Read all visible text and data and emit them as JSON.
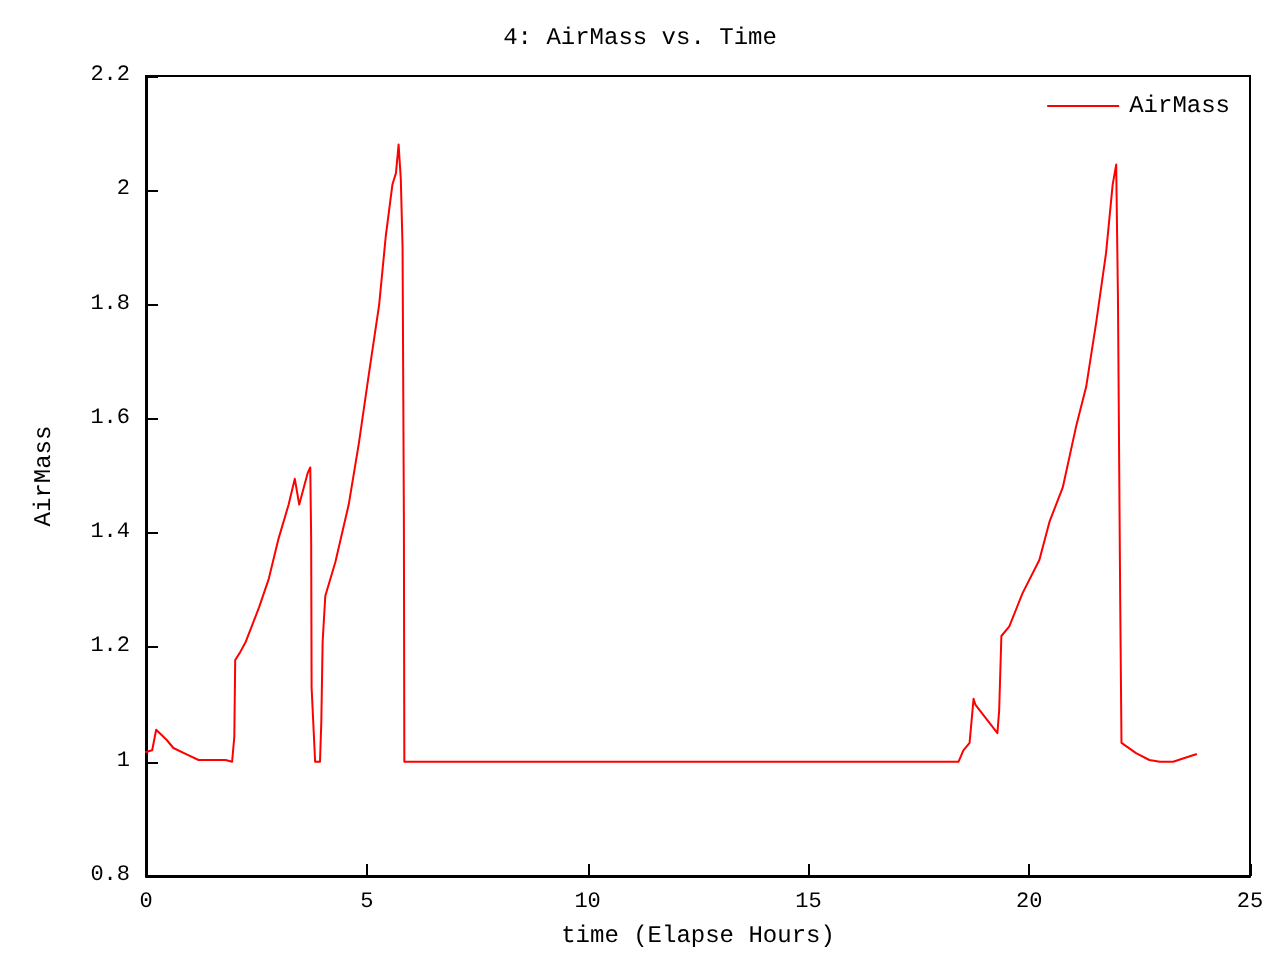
{
  "chart_data": {
    "type": "line",
    "title": "4: AirMass vs. Time",
    "xlabel": "time (Elapse Hours)",
    "ylabel": "AirMass",
    "x": [
      0,
      0.14,
      0.23,
      0.47,
      0.62,
      0.92,
      1.19,
      1.8,
      1.95,
      2.0,
      2.02,
      2.12,
      2.26,
      2.56,
      2.78,
      3.0,
      3.23,
      3.37,
      3.47,
      3.66,
      3.72,
      3.74,
      3.75,
      3.83,
      3.94,
      3.97,
      4.0,
      4.06,
      4.29,
      4.59,
      4.82,
      5.05,
      5.28,
      5.43,
      5.58,
      5.66,
      5.72,
      5.77,
      5.81,
      5.84,
      5.85,
      18.4,
      18.51,
      18.65,
      18.74,
      18.78,
      19.28,
      19.32,
      19.37,
      19.55,
      19.85,
      20.23,
      20.46,
      20.76,
      21.06,
      21.29,
      21.52,
      21.74,
      21.89,
      21.97,
      22.01,
      22.06,
      22.09,
      22.42,
      22.72,
      22.96,
      23.26,
      23.5,
      23.78
    ],
    "series": [
      {
        "name": "AirMass",
        "color": "#ff0000",
        "values": [
          1.017,
          1.02,
          1.056,
          1.038,
          1.024,
          1.013,
          1.003,
          1.003,
          1.0,
          1.044,
          1.178,
          1.19,
          1.21,
          1.27,
          1.32,
          1.39,
          1.45,
          1.495,
          1.45,
          1.505,
          1.515,
          1.39,
          1.13,
          1.0,
          1.0,
          1.07,
          1.21,
          1.29,
          1.35,
          1.45,
          1.557,
          1.68,
          1.8,
          1.92,
          2.01,
          2.03,
          2.08,
          2.02,
          1.9,
          1.42,
          1.0,
          1.0,
          1.02,
          1.033,
          1.11,
          1.1,
          1.05,
          1.09,
          1.22,
          1.237,
          1.295,
          1.353,
          1.42,
          1.48,
          1.586,
          1.656,
          1.77,
          1.89,
          2.01,
          2.045,
          1.81,
          1.29,
          1.033,
          1.015,
          1.003,
          1.0,
          1.0,
          1.006,
          1.013
        ]
      }
    ],
    "xlim": [
      0,
      25
    ],
    "xticks": [
      0,
      5,
      10,
      15,
      20,
      25
    ],
    "ylim": [
      0.8,
      2.2
    ],
    "yticks": [
      0.8,
      1,
      1.2,
      1.4,
      1.6,
      1.8,
      2,
      2.2
    ],
    "grid": false,
    "legend": "top right",
    "marker": "none",
    "line_style": "solid"
  }
}
